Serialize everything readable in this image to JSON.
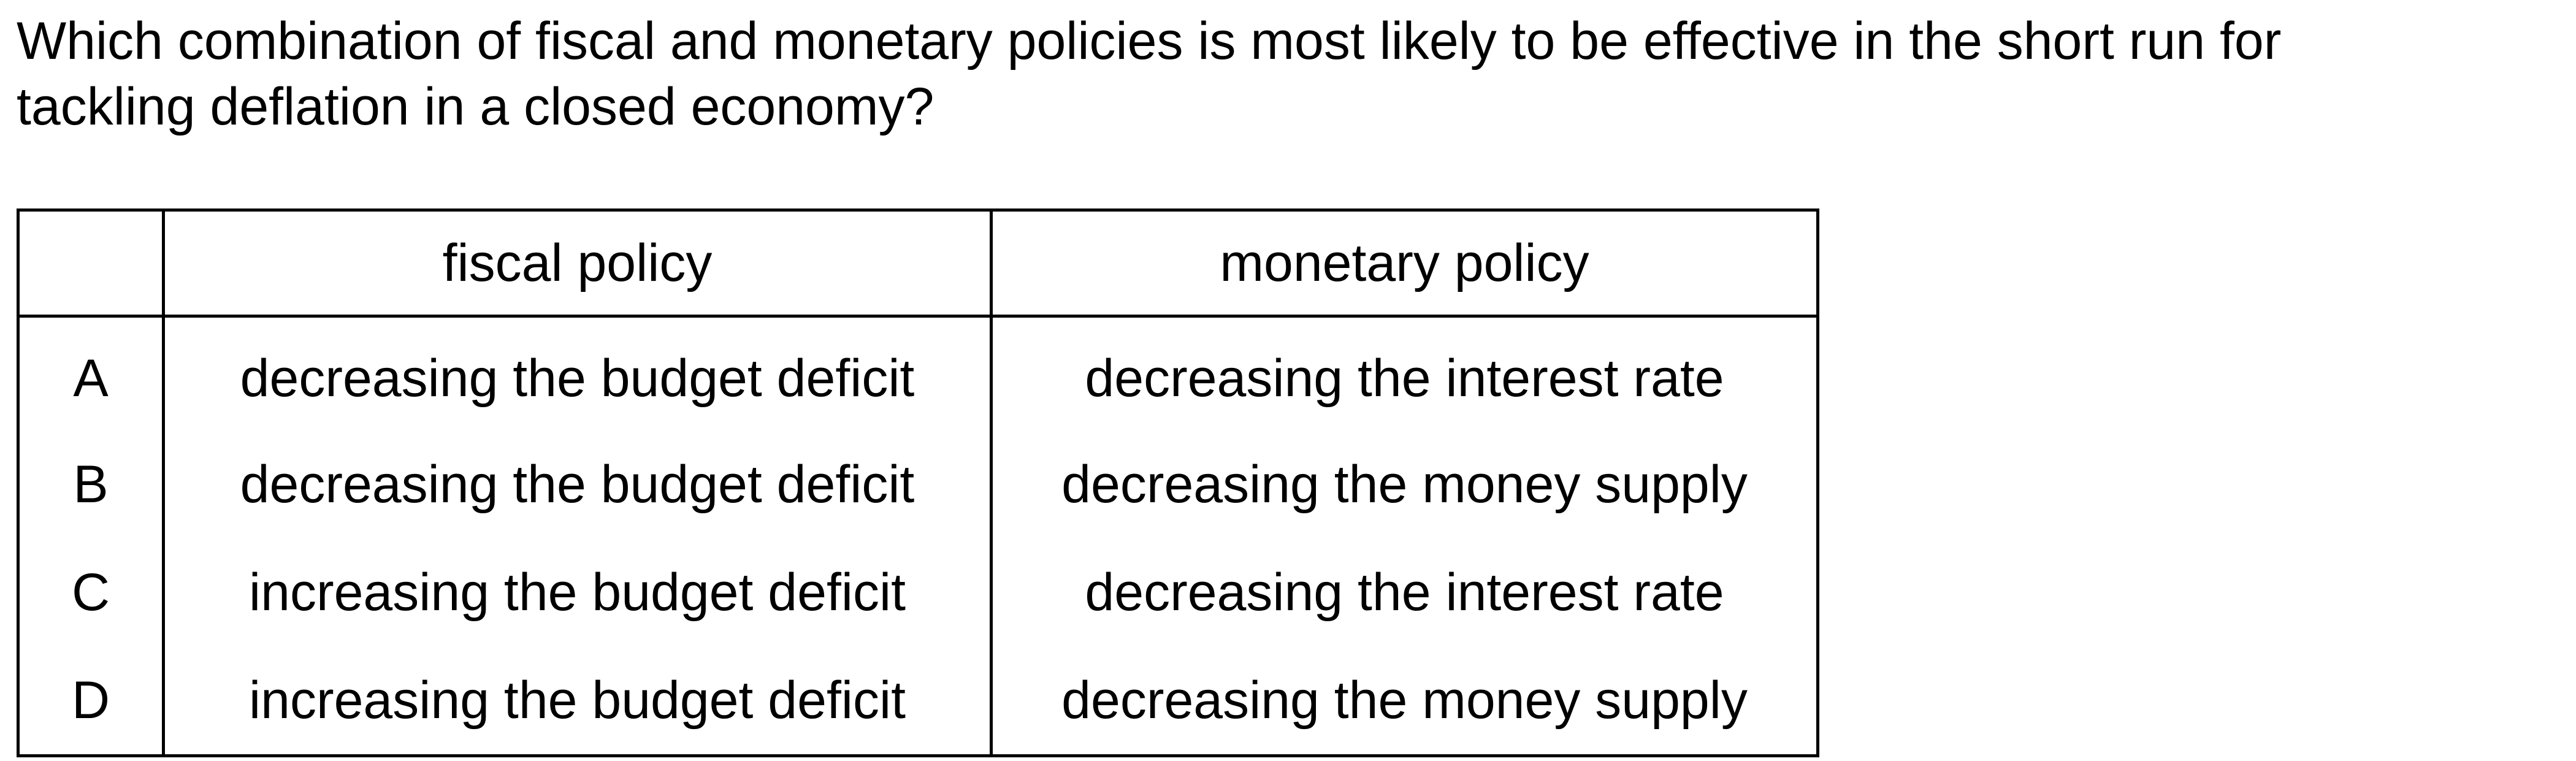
{
  "question": {
    "line1": "Which combination of fiscal and monetary policies is most likely to be effective in the short run for",
    "line2": "tackling deflation in a closed economy?"
  },
  "table": {
    "headers": {
      "key": "",
      "fiscal": "fiscal policy",
      "monetary": "monetary policy"
    },
    "rows": [
      {
        "key": "A",
        "fiscal": "decreasing the budget deficit",
        "monetary": "decreasing the interest rate"
      },
      {
        "key": "B",
        "fiscal": "decreasing the budget deficit",
        "monetary": "decreasing the money supply"
      },
      {
        "key": "C",
        "fiscal": "increasing the budget deficit",
        "monetary": "decreasing the interest rate"
      },
      {
        "key": "D",
        "fiscal": "increasing the budget deficit",
        "monetary": "decreasing the money supply"
      }
    ]
  }
}
